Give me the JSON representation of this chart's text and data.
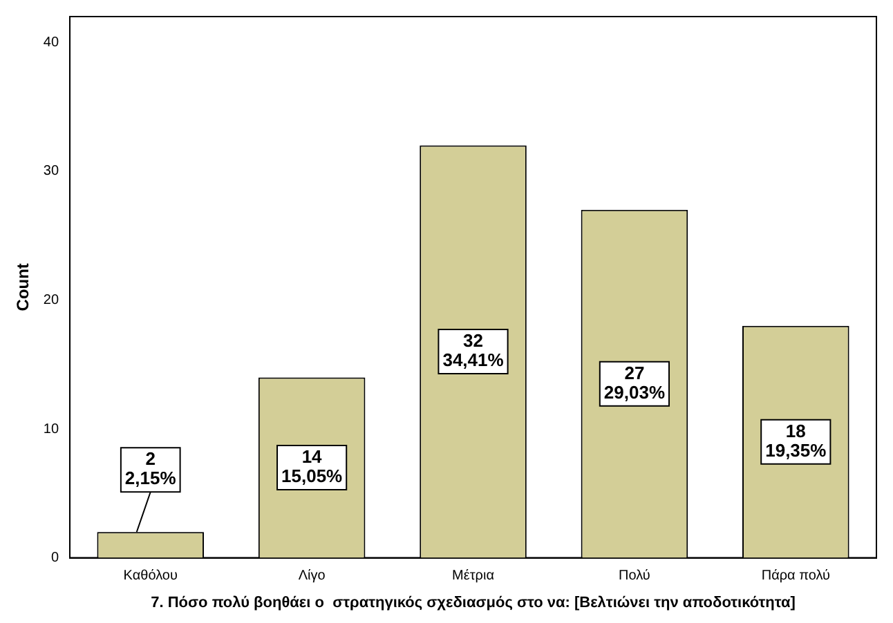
{
  "chart_data": {
    "type": "bar",
    "xlabel": "7. Πόσο πολύ βοηθάει ο  στρατηγικός σχεδιασμός στο να: [Βελτιώνει την αποδοτικότητα]",
    "ylabel": "Count",
    "categories": [
      "Καθόλου",
      "Λίγο",
      "Μέτρια",
      "Πολύ",
      "Πάρα πολύ"
    ],
    "values": [
      2,
      14,
      32,
      27,
      18
    ],
    "value_labels": [
      "2\n2,15%",
      "14\n15,05%",
      "32\n34,41%",
      "27\n29,03%",
      "18\n19,35%"
    ],
    "color": "#d3ce97",
    "ylim": [
      0,
      42
    ],
    "yticks": [
      0,
      10,
      20,
      30,
      40
    ],
    "grid": false,
    "legend": false
  }
}
